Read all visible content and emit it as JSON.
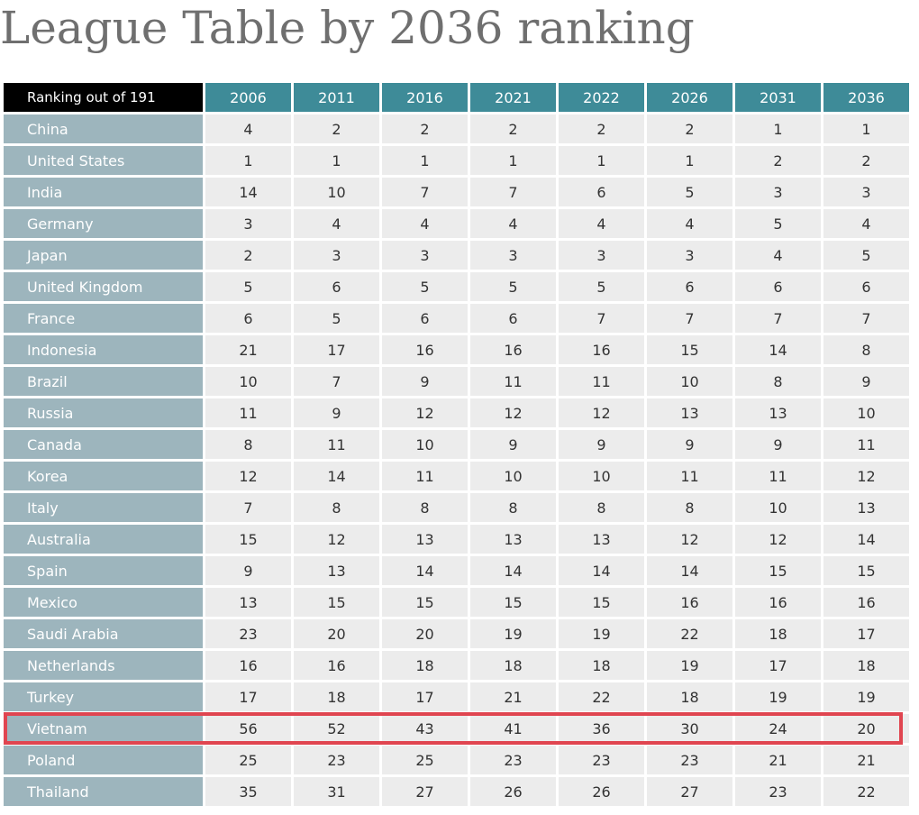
{
  "chart_data": {
    "type": "table",
    "title": "League Table by 2036 ranking",
    "corner_label": "Ranking out of 191",
    "columns": [
      "2006",
      "2011",
      "2016",
      "2021",
      "2022",
      "2026",
      "2031",
      "2036"
    ],
    "highlighted_row": "Vietnam",
    "highlight_color": "#e04550",
    "header_color": "#3e8b98",
    "row_label_color": "#9db5bd",
    "rows": [
      {
        "country": "China",
        "ranks": [
          "4",
          "2",
          "2",
          "2",
          "2",
          "2",
          "1",
          "1"
        ]
      },
      {
        "country": "United States",
        "ranks": [
          "1",
          "1",
          "1",
          "1",
          "1",
          "1",
          "2",
          "2"
        ]
      },
      {
        "country": "India",
        "ranks": [
          "14",
          "10",
          "7",
          "7",
          "6",
          "5",
          "3",
          "3"
        ]
      },
      {
        "country": "Germany",
        "ranks": [
          "3",
          "4",
          "4",
          "4",
          "4",
          "4",
          "5",
          "4"
        ]
      },
      {
        "country": "Japan",
        "ranks": [
          "2",
          "3",
          "3",
          "3",
          "3",
          "3",
          "4",
          "5"
        ]
      },
      {
        "country": "United Kingdom",
        "ranks": [
          "5",
          "6",
          "5",
          "5",
          "5",
          "6",
          "6",
          "6"
        ]
      },
      {
        "country": "France",
        "ranks": [
          "6",
          "5",
          "6",
          "6",
          "7",
          "7",
          "7",
          "7"
        ]
      },
      {
        "country": "Indonesia",
        "ranks": [
          "21",
          "17",
          "16",
          "16",
          "16",
          "15",
          "14",
          "8"
        ]
      },
      {
        "country": "Brazil",
        "ranks": [
          "10",
          "7",
          "9",
          "11",
          "11",
          "10",
          "8",
          "9"
        ]
      },
      {
        "country": "Russia",
        "ranks": [
          "11",
          "9",
          "12",
          "12",
          "12",
          "13",
          "13",
          "10"
        ]
      },
      {
        "country": "Canada",
        "ranks": [
          "8",
          "11",
          "10",
          "9",
          "9",
          "9",
          "9",
          "11"
        ]
      },
      {
        "country": "Korea",
        "ranks": [
          "12",
          "14",
          "11",
          "10",
          "10",
          "11",
          "11",
          "12"
        ]
      },
      {
        "country": "Italy",
        "ranks": [
          "7",
          "8",
          "8",
          "8",
          "8",
          "8",
          "10",
          "13"
        ]
      },
      {
        "country": "Australia",
        "ranks": [
          "15",
          "12",
          "13",
          "13",
          "13",
          "12",
          "12",
          "14"
        ]
      },
      {
        "country": "Spain",
        "ranks": [
          "9",
          "13",
          "14",
          "14",
          "14",
          "14",
          "15",
          "15"
        ]
      },
      {
        "country": "Mexico",
        "ranks": [
          "13",
          "15",
          "15",
          "15",
          "15",
          "16",
          "16",
          "16"
        ]
      },
      {
        "country": "Saudi Arabia",
        "ranks": [
          "23",
          "20",
          "20",
          "19",
          "19",
          "22",
          "18",
          "17"
        ]
      },
      {
        "country": "Netherlands",
        "ranks": [
          "16",
          "16",
          "18",
          "18",
          "18",
          "19",
          "17",
          "18"
        ]
      },
      {
        "country": "Turkey",
        "ranks": [
          "17",
          "18",
          "17",
          "21",
          "22",
          "18",
          "19",
          "19"
        ]
      },
      {
        "country": "Vietnam",
        "ranks": [
          "56",
          "52",
          "43",
          "41",
          "36",
          "30",
          "24",
          "20"
        ]
      },
      {
        "country": "Poland",
        "ranks": [
          "25",
          "23",
          "25",
          "23",
          "23",
          "23",
          "21",
          "21"
        ]
      },
      {
        "country": "Thailand",
        "ranks": [
          "35",
          "31",
          "27",
          "26",
          "26",
          "27",
          "23",
          "22"
        ]
      }
    ]
  }
}
